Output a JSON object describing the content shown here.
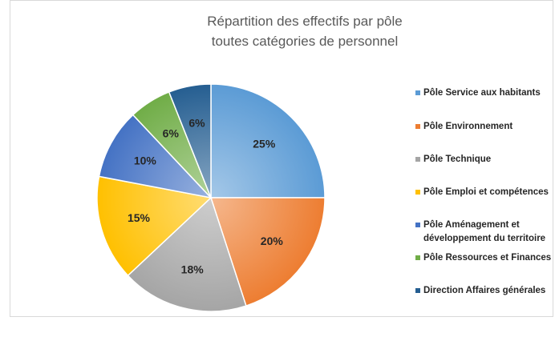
{
  "chart_data": {
    "type": "pie",
    "title": [
      "Répartition des effectifs par pôle",
      "toutes catégories de personnel"
    ],
    "categories": [
      "Pôle Service aux habitants",
      "Pôle Environnement",
      "Pôle Technique",
      "Pôle Emploi et compétences",
      "Pôle Aménagement et développement du territoire",
      "Pôle Ressources et Finances",
      "Direction Affaires générales"
    ],
    "values": [
      25,
      20,
      18,
      15,
      10,
      6,
      6
    ],
    "value_labels": [
      "25%",
      "20%",
      "18%",
      "15%",
      "10%",
      "6%",
      "6%"
    ],
    "colors": [
      "#5b9bd5",
      "#ed7d31",
      "#a5a5a5",
      "#ffc000",
      "#4472c4",
      "#70ad47",
      "#255e91"
    ],
    "legend": "right"
  }
}
